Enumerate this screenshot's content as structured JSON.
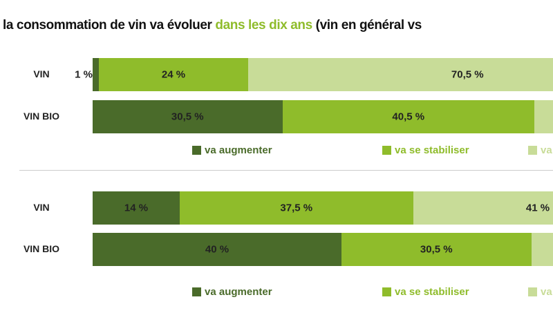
{
  "title": {
    "part1": "la consommation de vin va évoluer ",
    "highlight": "dans les dix ans",
    "part2": " (vin en général vs"
  },
  "colors": {
    "augmenter": "#4a6b2a",
    "stabiliser": "#8fbc2b",
    "diminuer": "#c8dc98"
  },
  "chart_data": {
    "type": "bar",
    "orientation": "horizontal",
    "stacked": true,
    "groups": [
      {
        "rows": [
          {
            "name": "VIN",
            "values": [
              1,
              24,
              70.5
            ],
            "labels": [
              "1 %",
              "24 %",
              "70,5 %"
            ]
          },
          {
            "name": "VIN BIO",
            "values": [
              30.5,
              40.5,
              null
            ],
            "labels": [
              "30,5 %",
              "40,5 %",
              ""
            ]
          }
        ],
        "legend": [
          "va augmenter",
          "va se stabiliser",
          "va"
        ]
      },
      {
        "rows": [
          {
            "name": "VIN",
            "values": [
              14,
              37.5,
              41
            ],
            "labels": [
              "14 %",
              "37,5 %",
              "41 %"
            ]
          },
          {
            "name": "VIN BIO",
            "values": [
              40,
              30.5,
              null
            ],
            "labels": [
              "40 %",
              "30,5 %",
              ""
            ]
          }
        ],
        "legend": [
          "va augmenter",
          "va se stabiliser",
          "va"
        ]
      }
    ]
  }
}
